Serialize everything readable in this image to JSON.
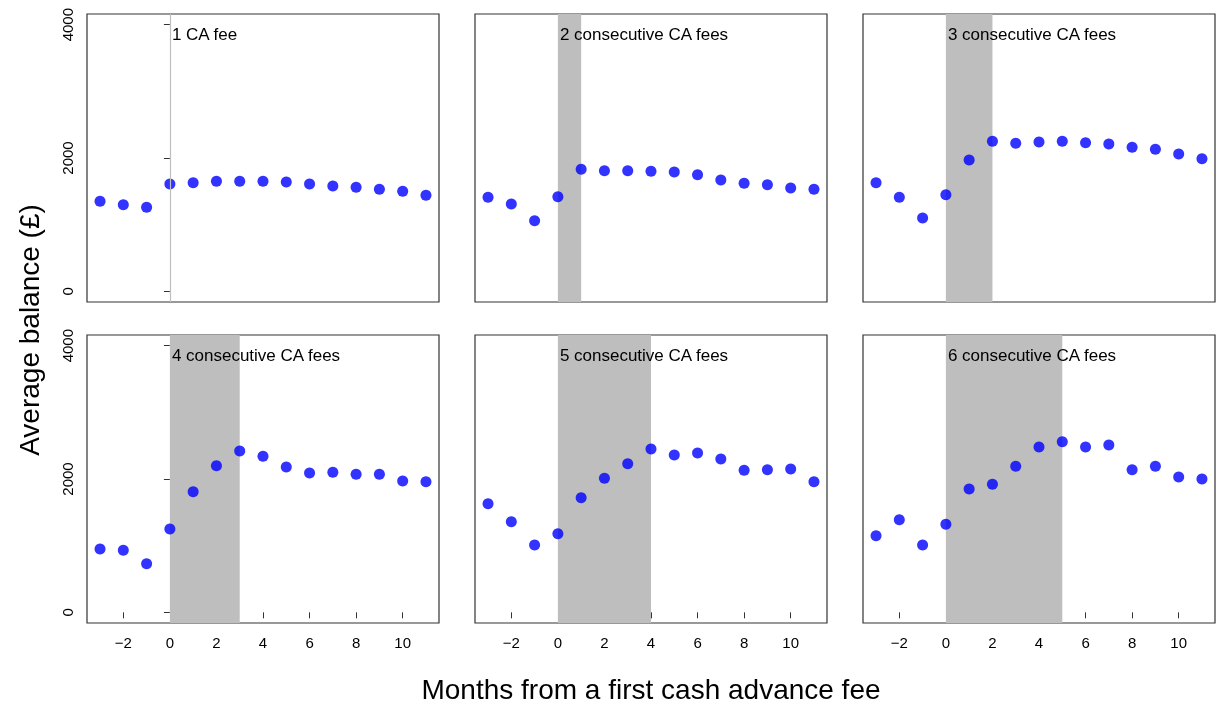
{
  "chart_data": [
    {
      "type": "scatter",
      "ylabel": "Average balance (£)",
      "x": [
        -3,
        -2,
        -1,
        0,
        1,
        2,
        3,
        4,
        5,
        6,
        7,
        8,
        9,
        10,
        11
      ],
      "values": [
        1350,
        1300,
        1260,
        1610,
        1630,
        1650,
        1650,
        1650,
        1640,
        1610,
        1580,
        1560,
        1530,
        1500,
        1440
      ],
      "color": "#0000ff",
      "marker": "circle",
      "xlim": [
        -3.56,
        11.56
      ],
      "ylim": [
        -160,
        4160
      ],
      "xticks": [
        -2,
        0,
        2,
        4,
        6,
        8,
        10
      ],
      "yticks": [
        0,
        2000,
        4000
      ],
      "tick_labels": "y",
      "grid": false,
      "ref_lines": [
        {
          "axis": "x",
          "value": 0,
          "label": "1 CA fee",
          "color": "#bebebe"
        }
      ]
    },
    {
      "type": "scatter",
      "x": [
        -3,
        -2,
        -1,
        0,
        1,
        2,
        3,
        4,
        5,
        6,
        7,
        8,
        9,
        10,
        11
      ],
      "values": [
        1410,
        1310,
        1060,
        1420,
        1830,
        1810,
        1810,
        1800,
        1790,
        1750,
        1670,
        1620,
        1600,
        1550,
        1530
      ],
      "color": "#0000ff",
      "marker": "circle",
      "xlim": [
        -3.56,
        11.56
      ],
      "ylim": [
        -160,
        4160
      ],
      "xticks": [
        -2,
        0,
        2,
        4,
        6,
        8,
        10
      ],
      "yticks": [
        0,
        2000,
        4000
      ],
      "tick_labels": false,
      "grid": false,
      "bands": [
        {
          "axis": "x",
          "from": 0,
          "to": 1,
          "label": "2 consecutive CA fees",
          "color": "#bebebe"
        }
      ]
    },
    {
      "type": "scatter",
      "x": [
        -3,
        -2,
        -1,
        0,
        1,
        2,
        3,
        4,
        5,
        6,
        7,
        8,
        9,
        10,
        11
      ],
      "values": [
        1630,
        1410,
        1100,
        1450,
        1970,
        2250,
        2220,
        2240,
        2250,
        2230,
        2210,
        2160,
        2130,
        2060,
        1990
      ],
      "color": "#0000ff",
      "marker": "circle",
      "xlim": [
        -3.56,
        11.56
      ],
      "ylim": [
        -160,
        4160
      ],
      "xticks": [
        -2,
        0,
        2,
        4,
        6,
        8,
        10
      ],
      "yticks": [
        0,
        2000,
        4000
      ],
      "tick_labels": false,
      "grid": false,
      "bands": [
        {
          "axis": "x",
          "from": 0,
          "to": 2,
          "label": "3 consecutive CA fees",
          "color": "#bebebe"
        }
      ]
    },
    {
      "type": "scatter",
      "x": [
        -3,
        -2,
        -1,
        0,
        1,
        2,
        3,
        4,
        5,
        6,
        7,
        8,
        9,
        10,
        11
      ],
      "values": [
        950,
        930,
        730,
        1250,
        1810,
        2200,
        2420,
        2340,
        2180,
        2090,
        2100,
        2070,
        2070,
        1970,
        1960
      ],
      "color": "#0000ff",
      "marker": "circle",
      "xlim": [
        -3.56,
        11.56
      ],
      "ylim": [
        -160,
        4160
      ],
      "xticks": [
        -2,
        0,
        2,
        4,
        6,
        8,
        10
      ],
      "yticks": [
        0,
        2000,
        4000
      ],
      "grid": false,
      "bands": [
        {
          "axis": "x",
          "from": 0,
          "to": 3,
          "label": "4 consecutive CA fees",
          "color": "#bebebe"
        }
      ]
    },
    {
      "type": "scatter",
      "xlabel": "Months from a first cash advance fee",
      "x": [
        -3,
        -2,
        -1,
        0,
        1,
        2,
        3,
        4,
        5,
        6,
        7,
        8,
        9,
        10,
        11
      ],
      "values": [
        1630,
        1360,
        1010,
        1180,
        1720,
        2010,
        2230,
        2450,
        2360,
        2390,
        2300,
        2130,
        2140,
        2150,
        1960
      ],
      "color": "#0000ff",
      "marker": "circle",
      "xlim": [
        -3.56,
        11.56
      ],
      "ylim": [
        -160,
        4160
      ],
      "xticks": [
        -2,
        0,
        2,
        4,
        6,
        8,
        10
      ],
      "yticks": [
        0,
        2000,
        4000
      ],
      "tick_labels": "x",
      "grid": false,
      "bands": [
        {
          "axis": "x",
          "from": 0,
          "to": 4,
          "label": "5 consecutive CA fees",
          "color": "#bebebe"
        }
      ]
    },
    {
      "type": "scatter",
      "x": [
        -3,
        -2,
        -1,
        0,
        1,
        2,
        3,
        4,
        5,
        6,
        7,
        8,
        9,
        10,
        11
      ],
      "values": [
        1150,
        1390,
        1010,
        1320,
        1850,
        1920,
        2190,
        2480,
        2560,
        2480,
        2510,
        2140,
        2190,
        2030,
        2000
      ],
      "color": "#0000ff",
      "marker": "circle",
      "xlim": [
        -3.56,
        11.56
      ],
      "ylim": [
        -160,
        4160
      ],
      "xticks": [
        -2,
        0,
        2,
        4,
        6,
        8,
        10
      ],
      "yticks": [
        0,
        2000,
        4000
      ],
      "tick_labels": "x",
      "grid": false,
      "bands": [
        {
          "axis": "x",
          "from": 0,
          "to": 5,
          "label": "6 consecutive CA fees",
          "color": "#bebebe"
        }
      ]
    }
  ]
}
